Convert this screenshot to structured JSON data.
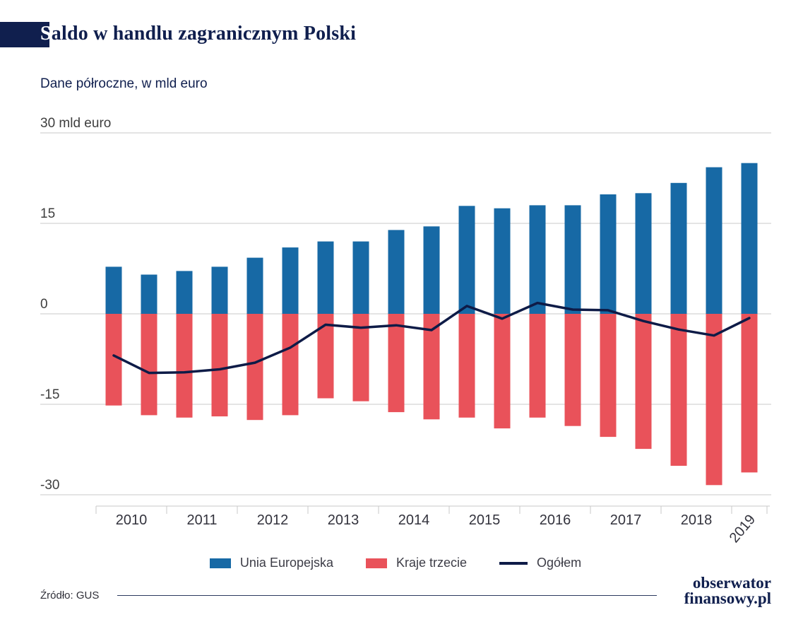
{
  "header": {
    "title_first_letter": "S",
    "title_rest": "aldo w handlu zagranicznym Polski",
    "subtitle": "Dane półroczne, w mld euro"
  },
  "legend": {
    "eu": "Unia Europejska",
    "third": "Kraje trzecie",
    "total": "Ogółem"
  },
  "footer": {
    "source": "Źródło: GUS",
    "logo_line1": "obserwator",
    "logo_line2": "finansowy.pl"
  },
  "colors": {
    "navy": "#101f4e",
    "eu_blue": "#1769a5",
    "third_red": "#e9525a",
    "line_navy": "#0e1b47",
    "grid_gray": "#c8c8c8",
    "axis_text": "#3e3e3e"
  },
  "chart_data": {
    "type": "bar",
    "title": "Saldo w handlu zagranicznym Polski",
    "subtitle": "Dane półroczne, w mld euro",
    "unit": "mld euro",
    "grid": true,
    "legend_position": "bottom",
    "ylim": [
      -30,
      30
    ],
    "categories": [
      "2010 H1",
      "2010 H2",
      "2011 H1",
      "2011 H2",
      "2012 H1",
      "2012 H2",
      "2013 H1",
      "2013 H2",
      "2014 H1",
      "2014 H2",
      "2015 H1",
      "2015 H2",
      "2016 H1",
      "2016 H2",
      "2017 H1",
      "2017 H2",
      "2018 H1",
      "2018 H2",
      "2019 H1"
    ],
    "year_labels": [
      "2010",
      "2011",
      "2012",
      "2013",
      "2014",
      "2015",
      "2016",
      "2017",
      "2018",
      "2019"
    ],
    "y_ticks": [
      {
        "value": 30,
        "label": "30 mld euro"
      },
      {
        "value": 15,
        "label": "15"
      },
      {
        "value": 0,
        "label": "0"
      },
      {
        "value": -15,
        "label": "-15"
      },
      {
        "value": -30,
        "label": "-30"
      }
    ],
    "series": [
      {
        "name": "Unia Europejska",
        "kind": "bar",
        "color": "#1769a5",
        "values": [
          7.8,
          6.5,
          7.1,
          7.8,
          9.3,
          11.0,
          12.0,
          12.0,
          13.9,
          14.5,
          17.9,
          17.5,
          18.0,
          18.0,
          19.8,
          20.0,
          21.7,
          24.3,
          25.0
        ]
      },
      {
        "name": "Kraje trzecie",
        "kind": "bar",
        "color": "#e9525a",
        "values": [
          -15.2,
          -16.8,
          -17.2,
          -17.0,
          -17.6,
          -16.8,
          -14.0,
          -14.5,
          -16.3,
          -17.5,
          -17.2,
          -19.0,
          -17.2,
          -18.6,
          -20.4,
          -22.4,
          -25.2,
          -28.4,
          -26.3
        ]
      },
      {
        "name": "Ogółem",
        "kind": "line",
        "color": "#0e1b47",
        "values": [
          -6.9,
          -9.8,
          -9.7,
          -9.2,
          -8.1,
          -5.6,
          -1.8,
          -2.3,
          -1.9,
          -2.7,
          1.3,
          -0.8,
          1.8,
          0.7,
          0.6,
          -1.2,
          -2.6,
          -3.6,
          -0.7
        ]
      }
    ]
  }
}
